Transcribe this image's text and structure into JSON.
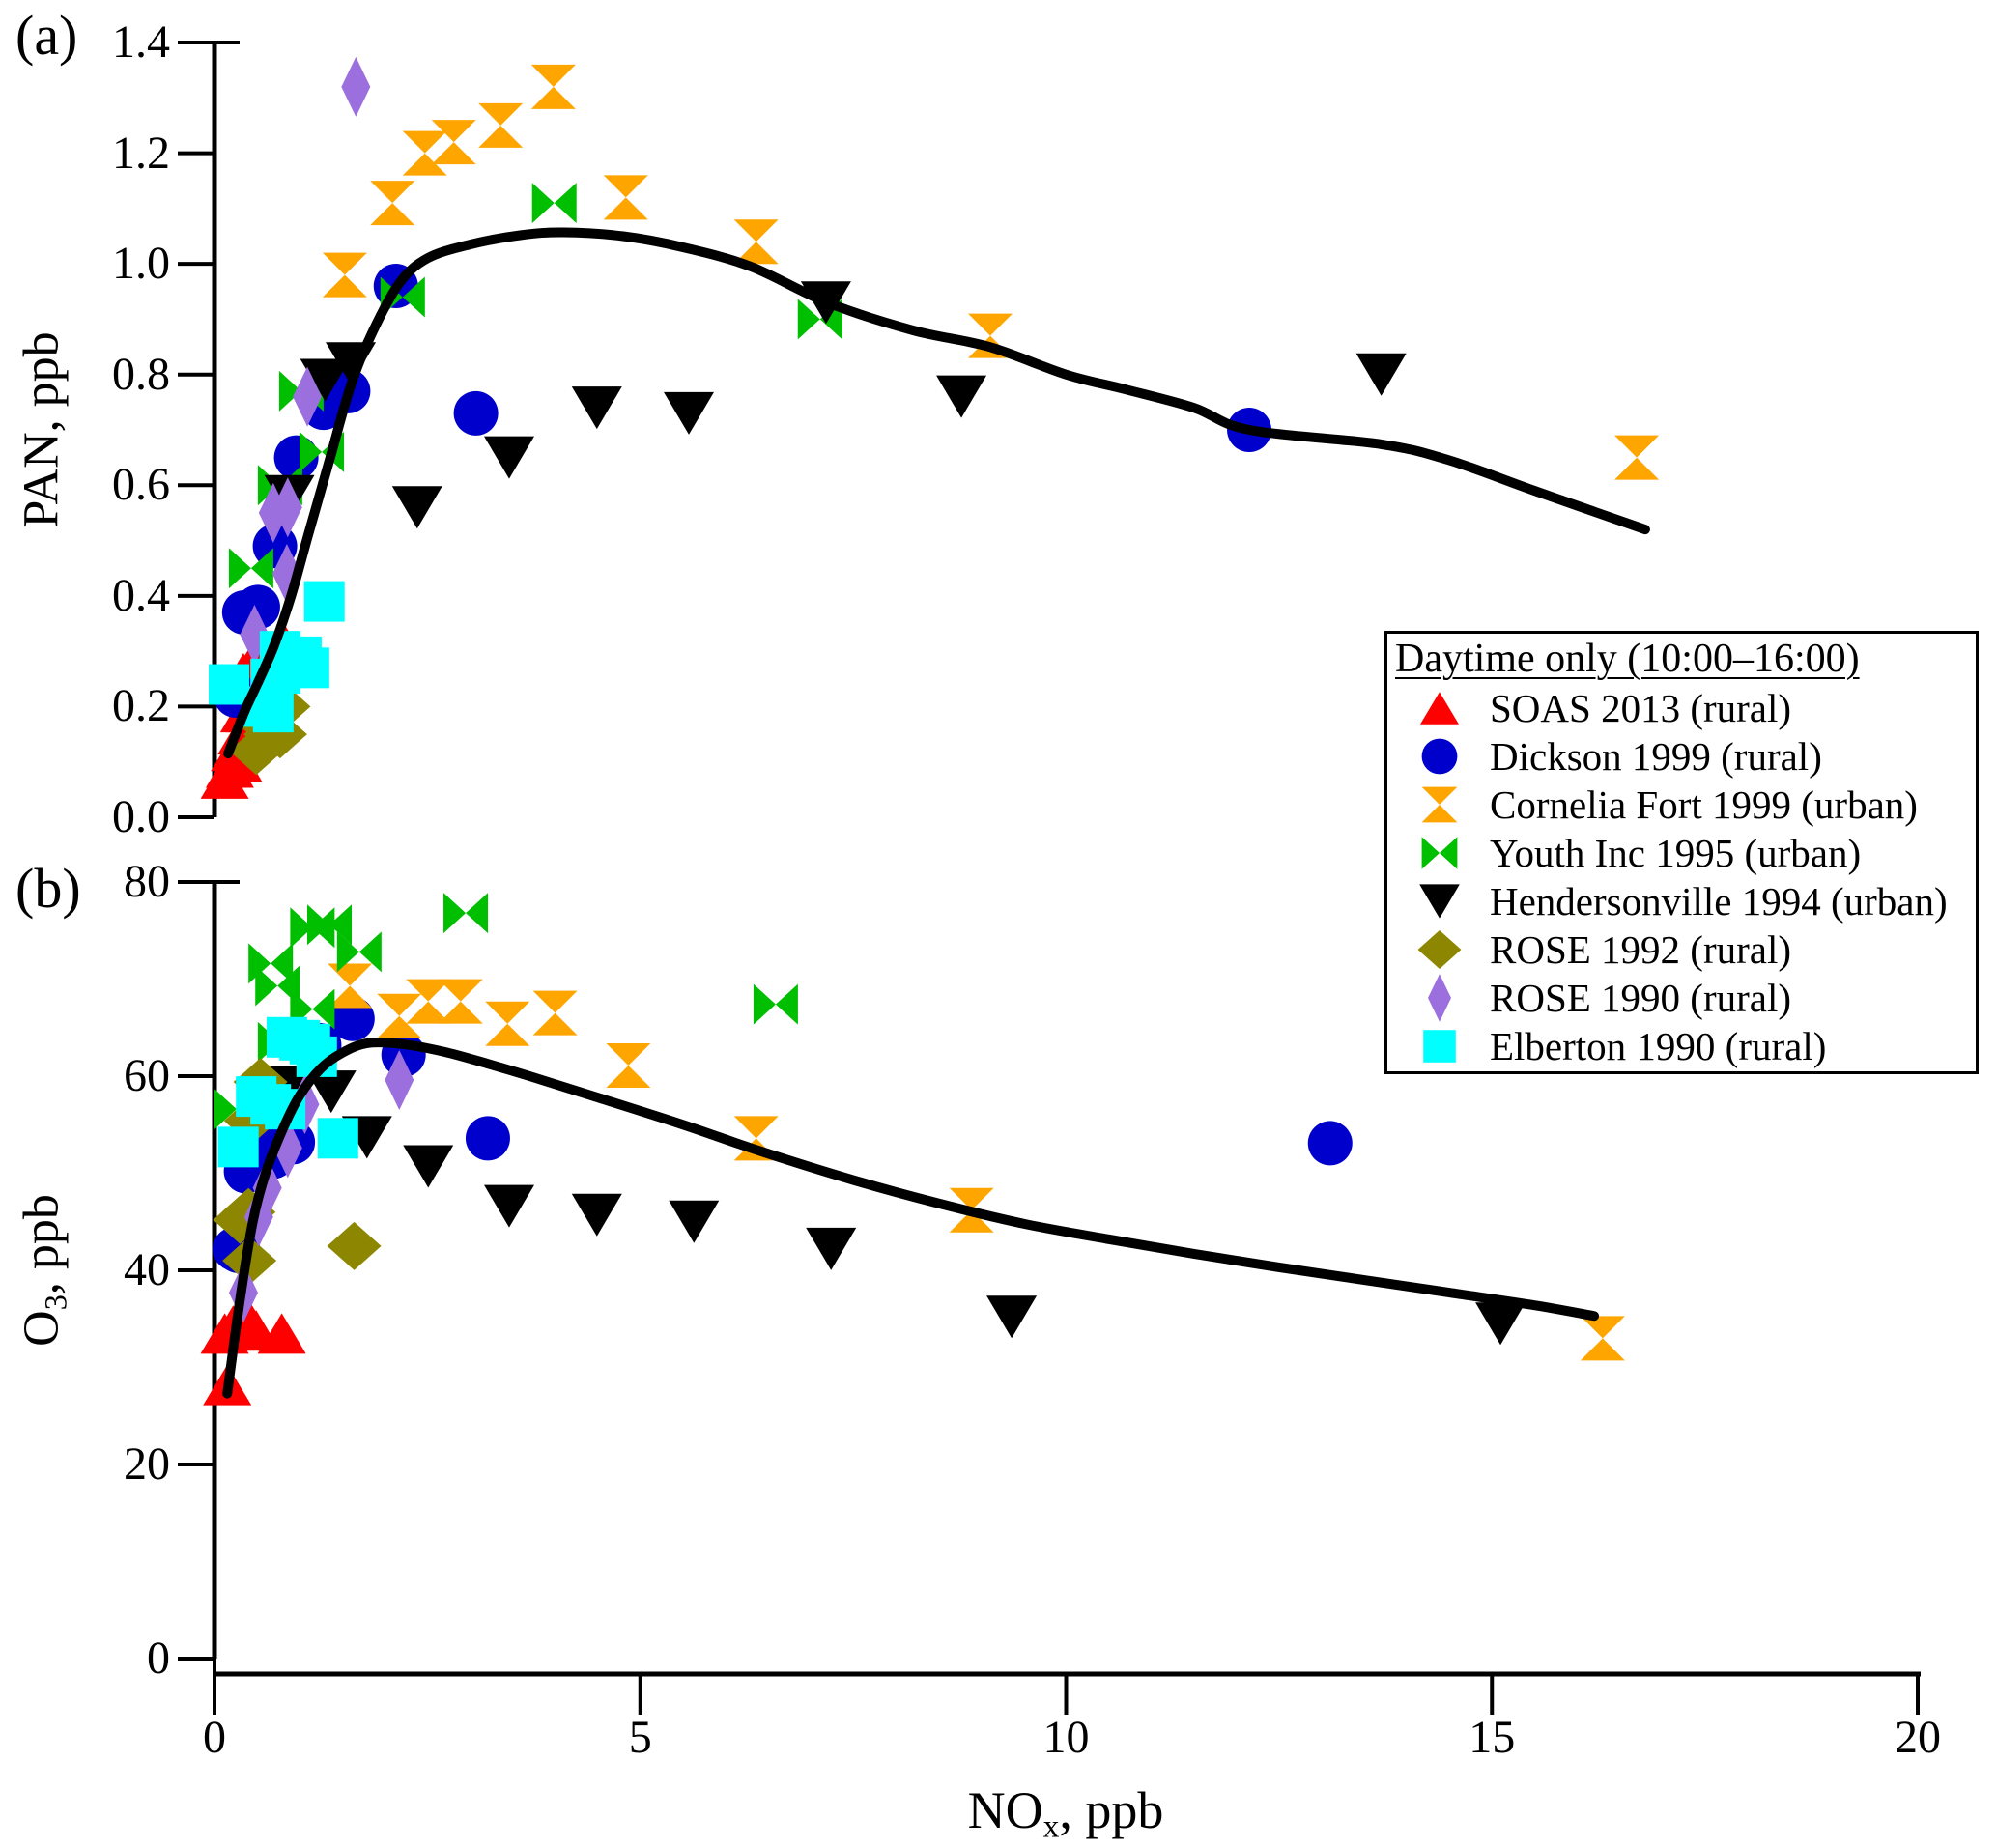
{
  "figure": {
    "panels": {
      "a": {
        "tag": "(a)",
        "ylabel": {
          "pre": "PAN, ppb",
          "sub": "",
          "post": ""
        }
      },
      "b": {
        "tag": "(b)",
        "ylabel": {
          "pre": "O",
          "sub": "3",
          "post": ", ppb"
        }
      }
    },
    "xlabel": {
      "pre": "NO",
      "sub": "x",
      "post": ", ppb"
    }
  },
  "legend": {
    "title": "Daytime only (10:00–16:00)",
    "items": [
      {
        "label": "SOAS 2013 (rural)",
        "marker": "triangle-up",
        "color": "#FF0000"
      },
      {
        "label": "Dickson 1999 (rural)",
        "marker": "circle",
        "color": "#0000CC"
      },
      {
        "label": "Cornelia Fort 1999 (urban)",
        "marker": "hourglass",
        "color": "#FFA500"
      },
      {
        "label": "Youth Inc 1995 (urban)",
        "marker": "bowtie",
        "color": "#00BF00"
      },
      {
        "label": "Hendersonville 1994 (urban)",
        "marker": "triangle-down",
        "color": "#000000"
      },
      {
        "label": "ROSE 1992 (rural)",
        "marker": "diamond",
        "color": "#8C8600"
      },
      {
        "label": "ROSE 1990 (rural)",
        "marker": "thin-diamond",
        "color": "#9C6FDE"
      },
      {
        "label": "Elberton 1990 (rural)",
        "marker": "square",
        "color": "#00FFFF"
      }
    ]
  },
  "chart_data": [
    {
      "id": "a",
      "type": "scatter",
      "title": "",
      "xlabel": "NOx, ppb",
      "ylabel": "PAN, ppb",
      "xlim": [
        0,
        20
      ],
      "ylim": [
        0,
        1.4
      ],
      "grid": false,
      "yticks": [
        {
          "v": 0.0,
          "label": "0.0"
        },
        {
          "v": 0.2,
          "label": "0.2"
        },
        {
          "v": 0.4,
          "label": "0.4"
        },
        {
          "v": 0.6,
          "label": "0.6"
        },
        {
          "v": 0.8,
          "label": "0.8"
        },
        {
          "v": 1.0,
          "label": "1.0"
        },
        {
          "v": 1.2,
          "label": "1.2"
        },
        {
          "v": 1.4,
          "label": "1.4"
        }
      ],
      "series": [
        {
          "name": "SOAS 2013 (rural)",
          "marker": "triangle-up",
          "color": "#FF0000",
          "points": [
            [
              0.12,
              0.07
            ],
            [
              0.18,
              0.09
            ],
            [
              0.24,
              0.12
            ],
            [
              0.28,
              0.1
            ],
            [
              0.32,
              0.15
            ],
            [
              0.43,
              0.15
            ],
            [
              0.35,
              0.19
            ],
            [
              0.41,
              0.19
            ],
            [
              0.39,
              0.23
            ],
            [
              0.34,
              0.26
            ],
            [
              0.45,
              0.28
            ],
            [
              0.79,
              0.32
            ]
          ]
        },
        {
          "name": "Dickson 1999 (rural)",
          "marker": "circle",
          "color": "#0000CC",
          "points": [
            [
              0.25,
              0.22
            ],
            [
              0.35,
              0.37
            ],
            [
              0.51,
              0.38
            ],
            [
              0.71,
              0.49
            ],
            [
              0.96,
              0.65
            ],
            [
              1.28,
              0.74
            ],
            [
              1.57,
              0.77
            ],
            [
              2.13,
              0.96
            ],
            [
              3.07,
              0.73
            ],
            [
              12.15,
              0.7
            ]
          ]
        },
        {
          "name": "Cornelia Fort 1999 (urban)",
          "marker": "hourglass",
          "color": "#FFA500",
          "points": [
            [
              1.53,
              0.98
            ],
            [
              2.09,
              1.11
            ],
            [
              2.47,
              1.2
            ],
            [
              2.81,
              1.22
            ],
            [
              3.36,
              1.25
            ],
            [
              3.98,
              1.32
            ],
            [
              4.83,
              1.12
            ],
            [
              6.36,
              1.04
            ],
            [
              9.11,
              0.87
            ],
            [
              16.7,
              0.65
            ]
          ]
        },
        {
          "name": "Youth Inc 1995 (urban)",
          "marker": "bowtie",
          "color": "#00BF00",
          "points": [
            [
              0.43,
              0.45
            ],
            [
              0.77,
              0.6
            ],
            [
              1.02,
              0.77
            ],
            [
              1.26,
              0.66
            ],
            [
              2.21,
              0.94
            ],
            [
              3.99,
              1.11
            ],
            [
              7.11,
              0.9
            ]
          ]
        },
        {
          "name": "Hendersonville 1994 (urban)",
          "marker": "triangle-down",
          "color": "#000000",
          "points": [
            [
              0.88,
              0.58
            ],
            [
              1.3,
              0.79
            ],
            [
              1.6,
              0.82
            ],
            [
              2.38,
              0.56
            ],
            [
              3.46,
              0.65
            ],
            [
              4.49,
              0.74
            ],
            [
              5.57,
              0.73
            ],
            [
              7.18,
              0.93
            ],
            [
              8.77,
              0.76
            ],
            [
              13.7,
              0.8
            ]
          ]
        },
        {
          "name": "ROSE 1992 (rural)",
          "marker": "diamond",
          "color": "#8C8600",
          "points": [
            [
              0.49,
              0.12
            ],
            [
              0.58,
              0.17
            ],
            [
              0.66,
              0.15
            ],
            [
              0.71,
              0.21
            ],
            [
              0.77,
              0.15
            ],
            [
              0.81,
              0.2
            ]
          ]
        },
        {
          "name": "ROSE 1990 (rural)",
          "marker": "thin-diamond",
          "color": "#9C6FDE",
          "points": [
            [
              0.47,
              0.33
            ],
            [
              0.85,
              0.44
            ],
            [
              0.69,
              0.55
            ],
            [
              0.86,
              0.56
            ],
            [
              1.09,
              0.76
            ],
            [
              1.66,
              1.32
            ]
          ]
        },
        {
          "name": "Elberton 1990 (rural)",
          "marker": "square",
          "color": "#00FFFF",
          "points": [
            [
              0.17,
              0.24
            ],
            [
              0.58,
              0.2
            ],
            [
              0.66,
              0.25
            ],
            [
              0.69,
              0.19
            ],
            [
              0.77,
              0.3
            ],
            [
              0.77,
              0.26
            ],
            [
              1.02,
              0.29
            ],
            [
              1.11,
              0.27
            ],
            [
              1.29,
              0.39
            ]
          ]
        }
      ],
      "fit_curve": [
        [
          0.16,
          0.115
        ],
        [
          0.35,
          0.19
        ],
        [
          0.5,
          0.24
        ],
        [
          0.7,
          0.31
        ],
        [
          0.9,
          0.4
        ],
        [
          1.1,
          0.51
        ],
        [
          1.35,
          0.645
        ],
        [
          1.6,
          0.78
        ],
        [
          1.85,
          0.875
        ],
        [
          2.17,
          0.965
        ],
        [
          2.5,
          1.01
        ],
        [
          3.0,
          1.035
        ],
        [
          3.6,
          1.052
        ],
        [
          4.1,
          1.057
        ],
        [
          4.8,
          1.05
        ],
        [
          5.5,
          1.03
        ],
        [
          6.3,
          0.995
        ],
        [
          7.2,
          0.93
        ],
        [
          8.2,
          0.88
        ],
        [
          9.1,
          0.85
        ],
        [
          10.0,
          0.8
        ],
        [
          10.7,
          0.773
        ],
        [
          11.5,
          0.74
        ],
        [
          12.15,
          0.7
        ],
        [
          13.7,
          0.674
        ],
        [
          14.5,
          0.645
        ],
        [
          15.5,
          0.59
        ],
        [
          16.8,
          0.52
        ]
      ]
    },
    {
      "id": "b",
      "type": "scatter",
      "title": "",
      "xlabel": "NOx, ppb",
      "ylabel": "O3, ppb",
      "xlim": [
        0,
        20
      ],
      "ylim": [
        0,
        80
      ],
      "grid": false,
      "yticks": [
        {
          "v": 0,
          "label": "0"
        },
        {
          "v": 20,
          "label": "20"
        },
        {
          "v": 40,
          "label": "40"
        },
        {
          "v": 60,
          "label": "60"
        },
        {
          "v": 80,
          "label": "80"
        }
      ],
      "xticks": [
        {
          "v": 0,
          "label": "0"
        },
        {
          "v": 5,
          "label": "5"
        },
        {
          "v": 10,
          "label": "10"
        },
        {
          "v": 15,
          "label": "15"
        },
        {
          "v": 20,
          "label": "20"
        }
      ],
      "series": [
        {
          "name": "SOAS 2013 (rural)",
          "marker": "triangle-up",
          "color": "#FF0000",
          "points": [
            [
              0.12,
              33.5
            ],
            [
              0.22,
              34.3
            ],
            [
              0.3,
              35.0
            ],
            [
              0.34,
              35.8
            ],
            [
              0.36,
              33.9
            ],
            [
              0.49,
              33.8
            ],
            [
              0.79,
              33.5
            ],
            [
              0.15,
              28.2
            ]
          ]
        },
        {
          "name": "Dickson 1999 (rural)",
          "marker": "circle",
          "color": "#0000CC",
          "points": [
            [
              0.24,
              42.2
            ],
            [
              0.28,
              42.0
            ],
            [
              0.37,
              50.2
            ],
            [
              0.52,
              53.7
            ],
            [
              0.69,
              51.7
            ],
            [
              0.92,
              53.2
            ],
            [
              1.23,
              63.2
            ],
            [
              1.62,
              65.9
            ],
            [
              2.22,
              62.2
            ],
            [
              3.21,
              53.6
            ],
            [
              13.1,
              53.1
            ]
          ]
        },
        {
          "name": "Cornelia Fort 1999 (urban)",
          "marker": "hourglass",
          "color": "#FFA500",
          "points": [
            [
              1.59,
              69.3
            ],
            [
              2.17,
              66.2
            ],
            [
              2.51,
              67.7
            ],
            [
              2.89,
              67.7
            ],
            [
              3.44,
              65.4
            ],
            [
              4.0,
              66.5
            ],
            [
              4.86,
              61.1
            ],
            [
              6.36,
              53.6
            ],
            [
              8.89,
              46.2
            ],
            [
              16.3,
              33.0
            ]
          ]
        },
        {
          "name": "Youth Inc 1995 (urban)",
          "marker": "bowtie",
          "color": "#00BF00",
          "points": [
            [
              0.26,
              56.6
            ],
            [
              0.66,
              71.6
            ],
            [
              0.74,
              69.3
            ],
            [
              0.77,
              63.5
            ],
            [
              1.15,
              75.3
            ],
            [
              1.35,
              75.6
            ],
            [
              1.15,
              66.9
            ],
            [
              1.7,
              72.8
            ],
            [
              2.95,
              76.8
            ],
            [
              6.59,
              67.4
            ]
          ]
        },
        {
          "name": "Hendersonville 1994 (urban)",
          "marker": "triangle-down",
          "color": "#000000",
          "points": [
            [
              0.95,
              58.8
            ],
            [
              1.37,
              58.4
            ],
            [
              1.79,
              53.7
            ],
            [
              2.51,
              50.7
            ],
            [
              3.46,
              46.6
            ],
            [
              4.49,
              45.7
            ],
            [
              5.63,
              45.0
            ],
            [
              7.24,
              42.2
            ],
            [
              9.36,
              35.2
            ],
            [
              15.1,
              34.5
            ]
          ]
        },
        {
          "name": "ROSE 1992 (rural)",
          "marker": "diamond",
          "color": "#8C8600",
          "points": [
            [
              0.3,
              45.2
            ],
            [
              0.4,
              46.0
            ],
            [
              0.41,
              41.0
            ],
            [
              0.43,
              55.4
            ],
            [
              0.54,
              59.4
            ],
            [
              1.64,
              42.5
            ]
          ]
        },
        {
          "name": "ROSE 1990 (rural)",
          "marker": "thin-diamond",
          "color": "#9C6FDE",
          "points": [
            [
              0.34,
              37.7
            ],
            [
              0.52,
              45.5
            ],
            [
              0.62,
              48.5
            ],
            [
              0.86,
              52.6
            ],
            [
              1.06,
              57.1
            ],
            [
              2.17,
              59.6
            ]
          ]
        },
        {
          "name": "Elberton 1990 (rural)",
          "marker": "square",
          "color": "#00FFFF",
          "points": [
            [
              0.28,
              52.7
            ],
            [
              0.49,
              57.9
            ],
            [
              0.66,
              57.1
            ],
            [
              0.83,
              56.6
            ],
            [
              0.85,
              64.0
            ],
            [
              1.0,
              63.7
            ],
            [
              1.12,
              63.3
            ],
            [
              1.2,
              62.0
            ],
            [
              1.45,
              53.6
            ]
          ]
        }
      ],
      "fit_curve": [
        [
          0.15,
          27.3
        ],
        [
          0.3,
          37
        ],
        [
          0.45,
          45
        ],
        [
          0.6,
          50
        ],
        [
          0.8,
          54.5
        ],
        [
          1.0,
          58
        ],
        [
          1.25,
          60.8
        ],
        [
          1.5,
          62.4
        ],
        [
          1.8,
          63.4
        ],
        [
          2.2,
          63.3
        ],
        [
          2.7,
          62.5
        ],
        [
          3.2,
          61.3
        ],
        [
          3.7,
          60
        ],
        [
          4.5,
          57.8
        ],
        [
          5.5,
          55
        ],
        [
          6.4,
          52.3
        ],
        [
          7.5,
          49.3
        ],
        [
          8.5,
          46.9
        ],
        [
          9.5,
          44.8
        ],
        [
          10.5,
          43.2
        ],
        [
          11.5,
          41.7
        ],
        [
          12.5,
          40.3
        ],
        [
          13.5,
          39
        ],
        [
          14.5,
          37.7
        ],
        [
          15.5,
          36.4
        ],
        [
          16.2,
          35.3
        ]
      ]
    }
  ]
}
